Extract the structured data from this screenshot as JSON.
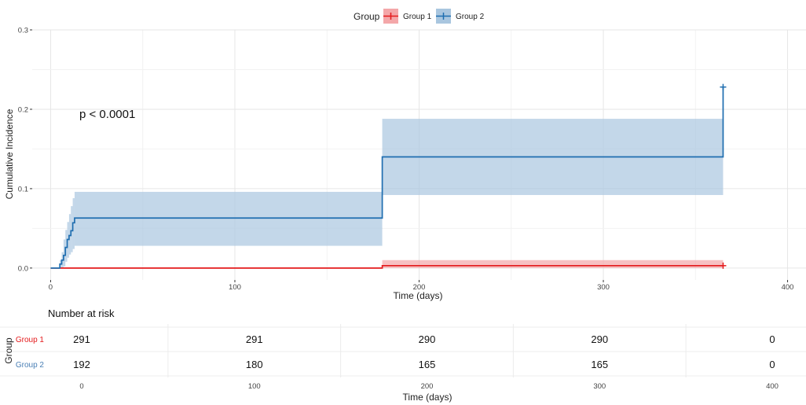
{
  "chart_data": [
    {
      "type": "line",
      "subtype": "cumulative-incidence-step",
      "title": "",
      "xlabel": "Time (days)",
      "ylabel": "Cumulative Incidence",
      "xlim": [
        -10,
        410
      ],
      "ylim": [
        -0.015,
        0.3
      ],
      "x_ticks": [
        0,
        100,
        200,
        300,
        400
      ],
      "y_ticks": [
        0.0,
        0.1,
        0.2,
        0.3
      ],
      "x_tick_labels": [
        "0",
        "100",
        "200",
        "300",
        "400"
      ],
      "y_tick_labels": [
        "0.0",
        "0.1",
        "0.2",
        "0.3"
      ],
      "grid": true,
      "legend": {
        "title": "Group",
        "position": "top",
        "entries": [
          "Group 1",
          "Group 2"
        ]
      },
      "annotation": "p < 0.0001",
      "series": [
        {
          "name": "Group 1",
          "color": "#e41a1c",
          "fill": "#f4a7a9",
          "x": [
            0,
            180,
            365
          ],
          "y": [
            0,
            0.003,
            0.003
          ],
          "lower": [
            0,
            0,
            0
          ],
          "upper": [
            0,
            0.01,
            0.01
          ],
          "censor": [
            [
              365,
              0.003
            ]
          ]
        },
        {
          "name": "Group 2",
          "color": "#1f6eb0",
          "fill": "#a9c6df",
          "x": [
            0,
            4,
            5,
            6,
            7,
            8,
            9,
            10,
            11,
            12,
            13,
            180,
            365,
            365
          ],
          "y": [
            0,
            0,
            0.005,
            0.01,
            0.016,
            0.026,
            0.036,
            0.041,
            0.047,
            0.057,
            0.063,
            0.14,
            0.14,
            0.228
          ],
          "lower": [
            0,
            0,
            0,
            0,
            0.002,
            0.008,
            0.013,
            0.017,
            0.02,
            0.024,
            0.028,
            0.092,
            0.092,
            0.092
          ],
          "upper": [
            0,
            0,
            0.01,
            0.02,
            0.036,
            0.048,
            0.058,
            0.068,
            0.078,
            0.088,
            0.096,
            0.188,
            0.188,
            0.188
          ],
          "censor": [
            [
              365,
              0.228
            ]
          ]
        }
      ]
    },
    {
      "type": "table",
      "title": "Number at risk",
      "ylabel": "Group",
      "xlabel": "Time (days)",
      "x_ticks": [
        0,
        100,
        200,
        300,
        400
      ],
      "x_tick_labels": [
        "0",
        "100",
        "200",
        "300",
        "400"
      ],
      "rows": [
        {
          "name": "Group 1",
          "color": "#e41a1c",
          "values": [
            "291",
            "291",
            "290",
            "290",
            "0"
          ]
        },
        {
          "name": "Group 2",
          "color": "#4a7fb5",
          "values": [
            "192",
            "180",
            "165",
            "165",
            "0"
          ]
        }
      ]
    }
  ]
}
